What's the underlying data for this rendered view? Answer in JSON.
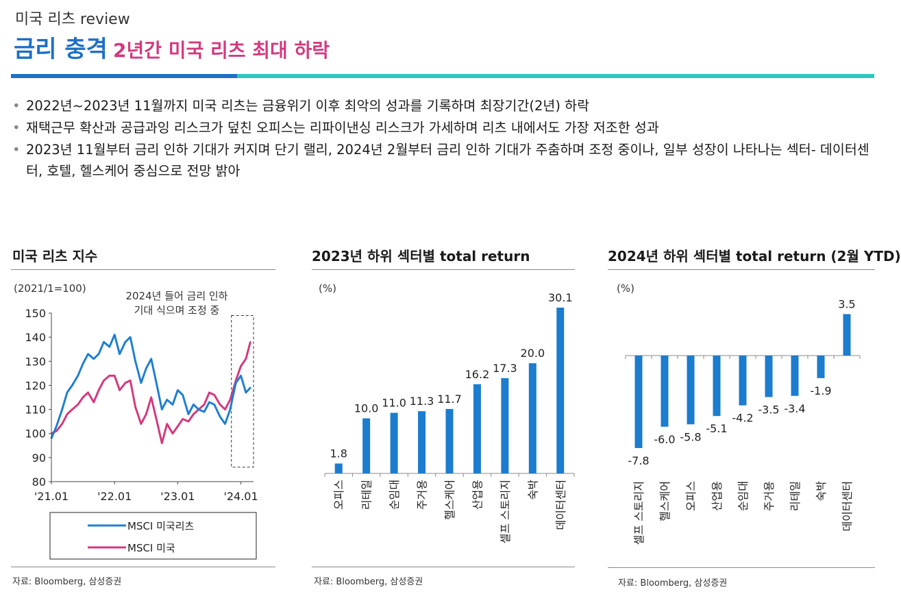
{
  "header": {
    "kicker": "미국 리츠 review",
    "title_main": "금리 충격",
    "title_sub": "2년간 미국 리츠 최대 하락"
  },
  "bullets": [
    "2022년~2023년 11월까지 미국 리츠는 금융위기 이후 최악의 성과를 기록하며 최장기간(2년) 하락",
    "재택근무 확산과 공급과잉 리스크가 덮친 오피스는 리파이낸싱 리스크가 가세하며 리츠 내에서도 가장 저조한 성과",
    "2023년 11월부터 금리 인하 기대가 커지며 단기 랠리, 2024년 2월부터 금리 인하 기대가 주춤하며 조정 중이나, 일부 성장이 나타나는 섹터- 데이터센터, 호텔, 헬스케어 중심으로 전망 밝아"
  ],
  "colors": {
    "blue": "#1f6fc4",
    "pink": "#d23a7e",
    "teal": "#2ec7c0",
    "bar": "#1c7ccd"
  },
  "chart_data": [
    {
      "type": "line",
      "title": "미국 리츠 지수",
      "unit_label": "(2021/1=100)",
      "annotation": [
        "2024년 들어 금리 인하",
        "기대 식으며 조정 중"
      ],
      "ylim": [
        80,
        150
      ],
      "yticks": [
        80,
        90,
        100,
        110,
        120,
        130,
        140,
        150
      ],
      "xlim": [
        2021.0,
        2024.2
      ],
      "xticks": [
        {
          "label": "'21.01",
          "x": 2021.0
        },
        {
          "label": "'22.01",
          "x": 2022.0
        },
        {
          "label": "'23.01",
          "x": 2023.0
        },
        {
          "label": "'24.01",
          "x": 2024.0
        }
      ],
      "highlight_range": [
        2023.85,
        2024.2
      ],
      "series": [
        {
          "name": "MSCI 미국리츠",
          "color": "#1f7fcf",
          "x": [
            2021.0,
            2021.08,
            2021.17,
            2021.25,
            2021.33,
            2021.42,
            2021.5,
            2021.58,
            2021.67,
            2021.75,
            2021.83,
            2021.92,
            2022.0,
            2022.08,
            2022.17,
            2022.25,
            2022.33,
            2022.42,
            2022.5,
            2022.58,
            2022.67,
            2022.75,
            2022.83,
            2022.92,
            2023.0,
            2023.08,
            2023.17,
            2023.25,
            2023.33,
            2023.42,
            2023.5,
            2023.58,
            2023.67,
            2023.75,
            2023.83,
            2023.92,
            2024.0,
            2024.08,
            2024.15
          ],
          "values": [
            98,
            103,
            110,
            117,
            120,
            124,
            129,
            133,
            131,
            133,
            138,
            136,
            141,
            133,
            138,
            140,
            130,
            121,
            127,
            131,
            120,
            110,
            114,
            112,
            118,
            116,
            108,
            112,
            110,
            109,
            113,
            112,
            107,
            104,
            110,
            121,
            124,
            117,
            119
          ]
        },
        {
          "name": "MSCI 미국",
          "color": "#d23a7e",
          "x": [
            2021.0,
            2021.08,
            2021.17,
            2021.25,
            2021.33,
            2021.42,
            2021.5,
            2021.58,
            2021.67,
            2021.75,
            2021.83,
            2021.92,
            2022.0,
            2022.08,
            2022.17,
            2022.25,
            2022.33,
            2022.42,
            2022.5,
            2022.58,
            2022.67,
            2022.75,
            2022.83,
            2022.92,
            2023.0,
            2023.08,
            2023.17,
            2023.25,
            2023.33,
            2023.42,
            2023.5,
            2023.58,
            2023.67,
            2023.75,
            2023.83,
            2023.92,
            2024.0,
            2024.08,
            2024.15
          ],
          "values": [
            100,
            101,
            104,
            108,
            110,
            112,
            115,
            117,
            113,
            118,
            122,
            124,
            124,
            118,
            121,
            122,
            111,
            104,
            108,
            115,
            105,
            96,
            104,
            100,
            103,
            106,
            105,
            108,
            110,
            112,
            117,
            116,
            112,
            110,
            114,
            122,
            128,
            131,
            138
          ]
        }
      ]
    },
    {
      "type": "bar",
      "title": "2023년 하위 섹터별 total return",
      "unit_label": "(%)",
      "categories": [
        "오피스",
        "리테일",
        "순임대",
        "주거용",
        "헬스케어",
        "산업용",
        "셀프 스토리지",
        "숙박",
        "데이터센터"
      ],
      "values": [
        1.8,
        10.0,
        11.0,
        11.3,
        11.7,
        16.2,
        17.3,
        20.0,
        30.1
      ],
      "value_labels": [
        "1.8",
        "10.0",
        "11.0",
        "11.3",
        "11.7",
        "16.2",
        "17.3",
        "20.0",
        "30.1"
      ],
      "ylim": [
        0,
        32
      ]
    },
    {
      "type": "bar",
      "title": "2024년 하위 섹터별 total return (2월 YTD)",
      "unit_label": "(%)",
      "categories": [
        "셀프 스토리지",
        "헬스케어",
        "오피스",
        "산업용",
        "순임대",
        "주거용",
        "리테일",
        "숙박",
        "데이터센터"
      ],
      "values": [
        -7.8,
        -6.0,
        -5.8,
        -5.1,
        -4.2,
        -3.5,
        -3.4,
        -1.9,
        3.5
      ],
      "value_labels": [
        "-7.8",
        "-6.0",
        "-5.8",
        "-5.1",
        "-4.2",
        "-3.5",
        "-3.4",
        "-1.9",
        "3.5"
      ],
      "ylim": [
        -8,
        4
      ]
    }
  ],
  "sources": [
    "자료: Bloomberg, 삼성증권",
    "자료: Bloomberg, 삼성증권",
    "자료: Bloomberg, 삼성증권"
  ]
}
